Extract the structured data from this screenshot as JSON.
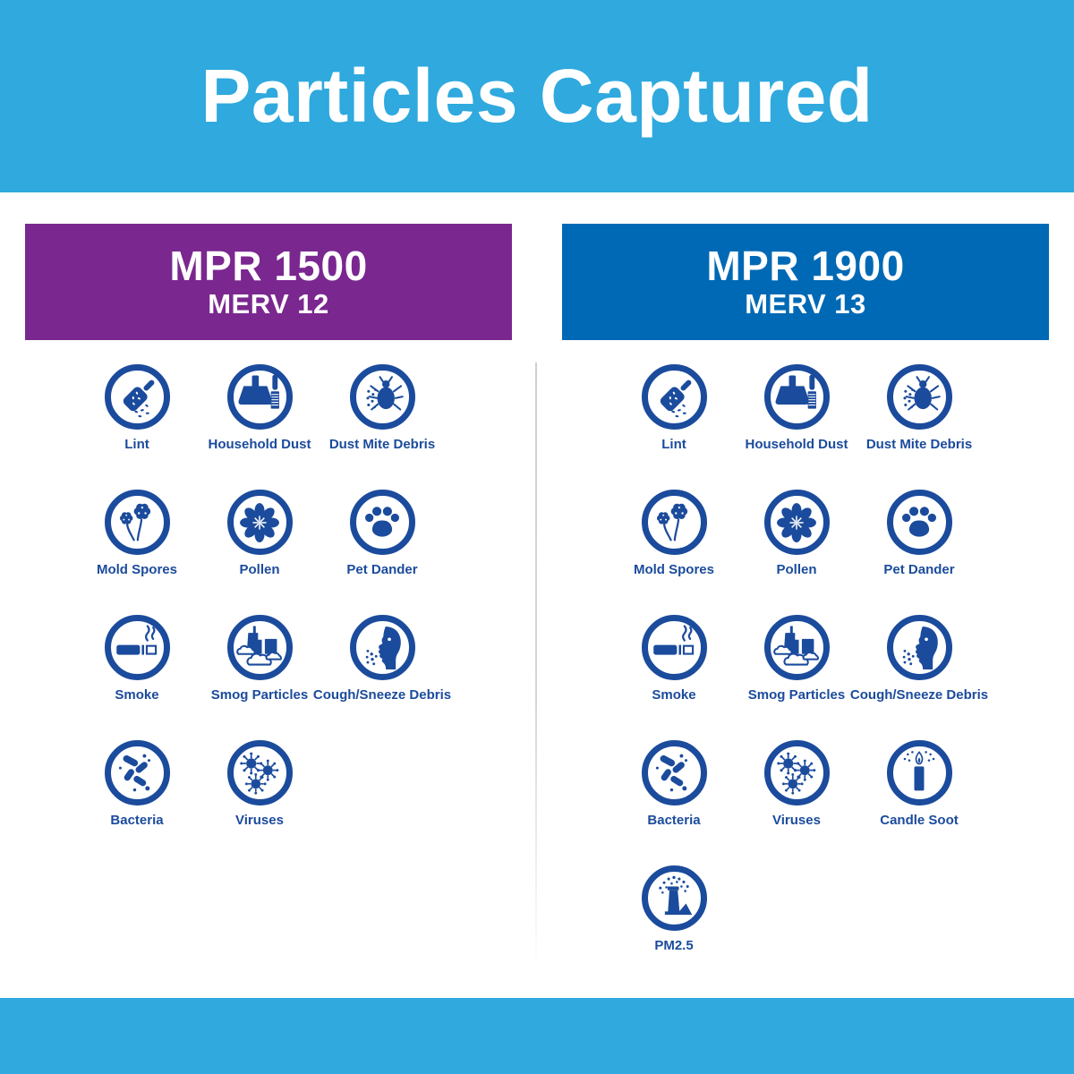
{
  "page": {
    "title": "Particles Captured"
  },
  "colors": {
    "band_cyan": "#2FA9DE",
    "icon_blue": "#1B4B9C",
    "mpr1500_purple": "#7B2790",
    "mpr1900_blue": "#0069B5"
  },
  "columns": [
    {
      "id": "mpr-1500",
      "header": {
        "mpr": "MPR 1500",
        "merv": "MERV 12",
        "bg": "#7B2790"
      },
      "particles": [
        {
          "icon": "lint-roller",
          "label": "Lint"
        },
        {
          "icon": "dustpan-brush",
          "label": "Household Dust"
        },
        {
          "icon": "dust-mite",
          "label": "Dust Mite Debris"
        },
        {
          "icon": "mold-spores",
          "label": "Mold Spores"
        },
        {
          "icon": "pollen-flower",
          "label": "Pollen"
        },
        {
          "icon": "paw-print",
          "label": "Pet Dander"
        },
        {
          "icon": "cigarette-smoke",
          "label": "Smoke"
        },
        {
          "icon": "smog-city",
          "label": "Smog Particles"
        },
        {
          "icon": "sneeze-face",
          "label": "Cough/Sneeze Debris"
        },
        {
          "icon": "bacteria",
          "label": "Bacteria"
        },
        {
          "icon": "viruses",
          "label": "Viruses"
        }
      ]
    },
    {
      "id": "mpr-1900",
      "header": {
        "mpr": "MPR 1900",
        "merv": "MERV 13",
        "bg": "#0069B5"
      },
      "particles": [
        {
          "icon": "lint-roller",
          "label": "Lint"
        },
        {
          "icon": "dustpan-brush",
          "label": "Household Dust"
        },
        {
          "icon": "dust-mite",
          "label": "Dust Mite Debris"
        },
        {
          "icon": "mold-spores",
          "label": "Mold Spores"
        },
        {
          "icon": "pollen-flower",
          "label": "Pollen"
        },
        {
          "icon": "paw-print",
          "label": "Pet Dander"
        },
        {
          "icon": "cigarette-smoke",
          "label": "Smoke"
        },
        {
          "icon": "smog-city",
          "label": "Smog Particles"
        },
        {
          "icon": "sneeze-face",
          "label": "Cough/Sneeze Debris"
        },
        {
          "icon": "bacteria",
          "label": "Bacteria"
        },
        {
          "icon": "viruses",
          "label": "Viruses"
        },
        {
          "icon": "candle",
          "label": "Candle Soot"
        },
        {
          "icon": "smokestack",
          "label": "PM2.5"
        }
      ]
    }
  ]
}
